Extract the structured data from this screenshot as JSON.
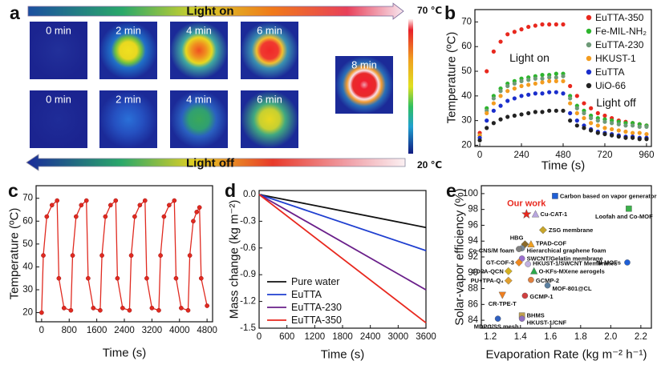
{
  "panel_a": {
    "panel_label": "a",
    "top_arrow_label": "Light on",
    "bottom_arrow_label": "Light off",
    "scale_max": "70 ℃",
    "scale_min": "20 ℃",
    "light_on_times": [
      "0 min",
      "2 min",
      "4 min",
      "6 min",
      "8 min"
    ],
    "light_off_times": [
      "0 min",
      "2 min",
      "4 min",
      "6 min"
    ]
  },
  "chart_data": [
    {
      "type": "scatter",
      "panel_label": "b",
      "x_label": "Time (s)",
      "y_label": "Temperature (ºC)",
      "annotations": [
        "Light on",
        "Light off"
      ],
      "x": [
        0,
        40,
        80,
        120,
        160,
        200,
        240,
        280,
        320,
        360,
        400,
        440,
        480,
        520,
        560,
        600,
        640,
        680,
        720,
        760,
        800,
        840,
        880,
        920,
        960
      ],
      "series": [
        {
          "name": "EuTTA-350",
          "color": "#e8281e",
          "values": [
            25,
            50,
            58,
            62,
            65,
            66,
            67,
            68,
            68.5,
            69,
            69,
            69,
            69,
            44,
            40,
            37,
            35,
            33,
            32,
            31,
            30,
            29.5,
            29,
            28.5,
            28
          ]
        },
        {
          "name": "Fe-MIL-NH₂",
          "color": "#2db52d",
          "values": [
            24,
            35,
            40,
            43,
            45,
            46,
            47,
            47.5,
            48,
            48.5,
            48.5,
            49,
            49,
            40,
            36,
            34,
            32,
            31,
            30.5,
            30,
            29.5,
            29,
            29,
            28.5,
            28
          ]
        },
        {
          "name": "EuTTA-230",
          "color": "#6e9a78",
          "values": [
            24,
            34,
            39,
            42,
            44,
            45,
            46,
            46.5,
            47,
            47,
            47.5,
            47.5,
            48,
            39,
            35,
            33,
            31,
            30,
            29.5,
            29,
            28.5,
            28,
            28,
            27.5,
            27.5
          ]
        },
        {
          "name": "HKUST-1",
          "color": "#f39c1f",
          "values": [
            24,
            33,
            37,
            40,
            42,
            43,
            44,
            44.5,
            45,
            45.5,
            46,
            46,
            46,
            37,
            33,
            31,
            29,
            28,
            27,
            26.5,
            26,
            25.5,
            25,
            25,
            24.5
          ]
        },
        {
          "name": "EuTTA",
          "color": "#1a2ecc",
          "values": [
            23,
            30,
            34,
            36,
            38,
            39,
            40,
            40.5,
            41,
            41,
            41.5,
            41.5,
            41,
            33,
            30,
            28,
            26.5,
            25.5,
            25,
            24.5,
            24,
            23.5,
            23.5,
            23,
            23
          ]
        },
        {
          "name": "UiO-66",
          "color": "#222222",
          "values": [
            22,
            27,
            29,
            30.5,
            31.5,
            32,
            32.5,
            33,
            33.5,
            33.5,
            34,
            34,
            34,
            30,
            28,
            27,
            26,
            25,
            24.5,
            24,
            23.5,
            23,
            23,
            22.5,
            22.5
          ]
        }
      ],
      "xlim": [
        -28,
        988
      ],
      "ylim": [
        19.5,
        75
      ],
      "xticks": [
        0,
        240,
        480,
        720,
        960
      ],
      "yticks": [
        20,
        30,
        40,
        50,
        60,
        70
      ],
      "legend": "upper right"
    },
    {
      "type": "line",
      "panel_label": "c",
      "x_label": "Time (s)",
      "y_label": "Temperature (ºC)",
      "color": "#e02a20",
      "x": [
        0,
        50,
        150,
        300,
        450,
        500,
        650,
        850,
        900,
        1000,
        1150,
        1300,
        1350,
        1500,
        1700,
        1750,
        1850,
        2000,
        2150,
        2200,
        2350,
        2550,
        2600,
        2700,
        2850,
        3000,
        3050,
        3200,
        3400,
        3450,
        3550,
        3700,
        3850,
        3900,
        4050,
        4250,
        4300,
        4400,
        4500,
        4580,
        4630,
        4800
      ],
      "values": [
        20,
        45,
        62,
        67,
        69,
        35,
        22,
        21,
        45,
        62,
        67,
        69,
        35,
        22,
        21,
        45,
        62,
        67,
        69,
        35,
        22,
        21,
        45,
        62,
        67,
        69,
        35,
        22,
        21,
        45,
        62,
        67,
        69,
        35,
        22,
        21,
        45,
        60,
        64,
        66,
        35,
        23
      ],
      "xlim": [
        -160,
        4960
      ],
      "ylim": [
        16,
        75.5
      ],
      "xticks": [
        0,
        800,
        1600,
        2400,
        3200,
        4000,
        4800
      ],
      "yticks": [
        20,
        30,
        40,
        50,
        60,
        70
      ]
    },
    {
      "type": "line",
      "panel_label": "d",
      "x_label": "Time (s)",
      "y_label": "Mass change (kg m⁻²)",
      "x": [
        0,
        3600
      ],
      "series": [
        {
          "name": "Pure water",
          "color": "#111111",
          "values": [
            0,
            -0.37
          ]
        },
        {
          "name": "EuTTA",
          "color": "#1f3fd0",
          "values": [
            0,
            -0.63
          ]
        },
        {
          "name": "EuTTA-230",
          "color": "#6a1f8a",
          "values": [
            0,
            -1.07
          ]
        },
        {
          "name": "EuTTA-350",
          "color": "#e8281e",
          "values": [
            0,
            -1.44
          ]
        }
      ],
      "xlim": [
        0,
        3600
      ],
      "ylim": [
        -1.5,
        0.045
      ],
      "xticks": [
        0,
        600,
        1200,
        1800,
        2400,
        3000,
        3600
      ],
      "yticks": [
        {
          "value": 0,
          "label": "0.0"
        },
        -0.3,
        -0.6,
        -0.9,
        -1.2,
        -1.5
      ],
      "legend": "lower left"
    },
    {
      "type": "scatter",
      "panel_label": "e",
      "x_label": "Evaporation Rate (kg m⁻² h⁻¹)",
      "y_label": "Solar-vapor efficiency (%)",
      "points": [
        {
          "label": "Carbon based on vapor generators",
          "x": 1.63,
          "y": 99.7,
          "color": "#1f5fd6",
          "shape": "square"
        },
        {
          "label": "Our work",
          "x": 1.44,
          "y": 97.4,
          "color": "#e8281e",
          "shape": "star"
        },
        {
          "label": "Cu-CAT-1",
          "x": 1.5,
          "y": 97.4,
          "color": "#b9a7e0",
          "shape": "triangle"
        },
        {
          "label": "Loofah and Co-MOF",
          "x": 2.12,
          "y": 98.1,
          "color": "#3bb24a",
          "shape": "square"
        },
        {
          "label": "ZSG membrane",
          "x": 1.55,
          "y": 95.4,
          "color": "#c7a52b",
          "shape": "diamond"
        },
        {
          "label": "HBG",
          "x": 1.43,
          "y": 93.6,
          "color": "#8a6a2a",
          "shape": "diamond"
        },
        {
          "label": "TPAD-COF",
          "x": 1.47,
          "y": 93.6,
          "color": "#f0a020",
          "shape": "triangle"
        },
        {
          "label": "Hierarchical graphene foam",
          "x": 1.41,
          "y": 93.1,
          "color": "#7a8a9a",
          "shape": "circle"
        },
        {
          "label": "Co-CNS/M foam",
          "x": 1.39,
          "y": 93,
          "color": "#808080",
          "shape": "circle"
        },
        {
          "label": "SWCNT/Gelatin membrane",
          "x": 1.41,
          "y": 91.8,
          "color": "#9b6fcf",
          "shape": "circle"
        },
        {
          "label": "GT-COF-3",
          "x": 1.39,
          "y": 91.3,
          "color": "#f08a20",
          "shape": "diamond"
        },
        {
          "label": "HKUST-1/SWCNT Membranes",
          "x": 1.45,
          "y": 91.1,
          "color": "#c0b0e0",
          "shape": "circle"
        },
        {
          "label": "GDPA-QCN",
          "x": 1.32,
          "y": 90.2,
          "color": "#d4b020",
          "shape": "diamond"
        },
        {
          "label": "O-KFs-MXene aerogels",
          "x": 1.49,
          "y": 90.2,
          "color": "#2aa84a",
          "shape": "triangle"
        },
        {
          "label": "NI-MOFs",
          "x": 2.11,
          "y": 91.3,
          "color": "#1f5fd6",
          "shape": "circle"
        },
        {
          "label": "GCMP-2",
          "x": 1.47,
          "y": 89.1,
          "color": "#e08040",
          "shape": "circle"
        },
        {
          "label": "PU+TPA-Q₄",
          "x": 1.32,
          "y": 89,
          "color": "#e0a030",
          "shape": "diamond"
        },
        {
          "label": "MOF-801@CL",
          "x": 1.58,
          "y": 88.4,
          "color": "#5a7fa0",
          "shape": "circle"
        },
        {
          "label": "GCMP-1",
          "x": 1.43,
          "y": 87.1,
          "color": "#d04040",
          "shape": "circle"
        },
        {
          "label": "CR-TPE-T",
          "x": 1.28,
          "y": 87.2,
          "color": "#f08020",
          "shape": "invtriangle"
        },
        {
          "label": "BHMS",
          "x": 1.41,
          "y": 84.6,
          "color": "#c0a050",
          "shape": "square"
        },
        {
          "label": "MDPC/SS mesh",
          "x": 1.25,
          "y": 84.2,
          "color": "#3060c0",
          "shape": "circle"
        },
        {
          "label": "HKUST-1/CNF",
          "x": 1.41,
          "y": 84.2,
          "color": "#9070c0",
          "shape": "circle"
        }
      ],
      "xlim": [
        1.14,
        2.27
      ],
      "ylim": [
        83,
        101
      ],
      "xticks": [
        1.2,
        1.4,
        1.6,
        1.8,
        {
          "value": 2,
          "label": "2.0"
        },
        2.2
      ],
      "yticks": [
        84,
        86,
        88,
        90,
        92,
        94,
        96,
        98,
        100
      ]
    }
  ]
}
